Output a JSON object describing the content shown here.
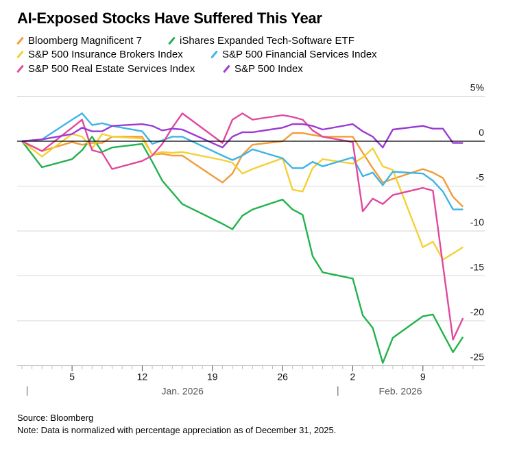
{
  "chart_data": {
    "type": "line",
    "title": "AI-Exposed Stocks Have Suffered This Year",
    "ylim": [
      -25,
      5
    ],
    "yticks": [
      5,
      0,
      -5,
      -10,
      -15,
      -20,
      -25
    ],
    "ytick_labels": [
      "5%",
      "0",
      "-5",
      "-10",
      "-15",
      "-20",
      "-25"
    ],
    "xlim": [
      "2025-12-31",
      "2026-02-13"
    ],
    "xtick_labels": [
      {
        "date": "2026-01-05",
        "label": "5"
      },
      {
        "date": "2026-01-12",
        "label": "12"
      },
      {
        "date": "2026-01-19",
        "label": "19"
      },
      {
        "date": "2026-01-26",
        "label": "26"
      },
      {
        "date": "2026-02-02",
        "label": "2"
      },
      {
        "date": "2026-02-09",
        "label": "9"
      }
    ],
    "month_labels": [
      {
        "start": "2026-01-01",
        "label": "Jan. 2026"
      },
      {
        "start": "2026-02-01",
        "label": "Feb. 2026"
      }
    ],
    "grid": true,
    "legend_placement": "top",
    "dates": [
      "2025-12-31",
      "2026-01-02",
      "2026-01-05",
      "2026-01-06",
      "2026-01-07",
      "2026-01-08",
      "2026-01-09",
      "2026-01-12",
      "2026-01-13",
      "2026-01-14",
      "2026-01-15",
      "2026-01-16",
      "2026-01-20",
      "2026-01-21",
      "2026-01-22",
      "2026-01-23",
      "2026-01-26",
      "2026-01-27",
      "2026-01-28",
      "2026-01-29",
      "2026-01-30",
      "2026-02-02",
      "2026-02-03",
      "2026-02-04",
      "2026-02-05",
      "2026-02-06",
      "2026-02-09",
      "2026-02-10",
      "2026-02-11",
      "2026-02-12",
      "2026-02-13"
    ],
    "series": [
      {
        "name": "Bloomberg Magnificent 7",
        "color": "#f29b38",
        "values": [
          0,
          -1.1,
          -0.1,
          -0.4,
          -0.2,
          -0.2,
          0.5,
          0.5,
          -1.5,
          -1.4,
          -1.6,
          -1.6,
          -4.6,
          -3.6,
          -1.5,
          -0.4,
          0,
          0.9,
          0.9,
          0.7,
          0.5,
          0.5,
          -1.3,
          -3.0,
          -4.6,
          -4.2,
          -3.1,
          -3.5,
          -4.1,
          -6.2,
          -7.3
        ]
      },
      {
        "name": "iShares Expanded Tech-Software ETF",
        "color": "#22b24c",
        "values": [
          0,
          -2.9,
          -2.0,
          -1.0,
          0.5,
          -1.2,
          -0.7,
          -0.3,
          -2.3,
          -4.4,
          -5.7,
          -7.0,
          -9.2,
          -9.8,
          -8.3,
          -7.6,
          -6.5,
          -7.6,
          -8.2,
          -12.8,
          -14.6,
          -15.3,
          -19.4,
          -20.8,
          -24.7,
          -21.9,
          -19.5,
          -19.3,
          -21.4,
          -23.5,
          -21.8
        ]
      },
      {
        "name": "S&P 500 Insurance Brokers Index",
        "color": "#f5d033",
        "values": [
          0,
          -1.7,
          0.8,
          0.5,
          -0.8,
          0.8,
          0.5,
          0.3,
          -1.5,
          -1.2,
          -1.3,
          -1.2,
          -2.1,
          -2.4,
          -3.6,
          -3.1,
          -1.9,
          -5.4,
          -5.6,
          -3.0,
          -2.0,
          -2.5,
          -1.8,
          -0.8,
          -2.8,
          -3.2,
          -11.8,
          -11.2,
          -13.2,
          -12.5,
          -11.8
        ]
      },
      {
        "name": "S&P 500 Financial Services Index",
        "color": "#3db4e6",
        "values": [
          0,
          0.2,
          2.4,
          3.1,
          1.8,
          2.0,
          1.7,
          1.1,
          -0.3,
          0.1,
          0.5,
          0.5,
          -1.6,
          -2.1,
          -1.6,
          -0.9,
          -1.9,
          -3.0,
          -3.0,
          -2.3,
          -2.8,
          -1.8,
          -3.9,
          -3.5,
          -4.9,
          -3.4,
          -3.6,
          -4.4,
          -5.6,
          -7.6,
          -7.6
        ]
      },
      {
        "name": "S&P 500 Real Estate Services Index",
        "color": "#e0489e",
        "values": [
          0,
          -1.1,
          1.5,
          2.4,
          -1.0,
          -1.3,
          -3.1,
          -2.2,
          -1.6,
          -0.3,
          1.5,
          3.1,
          -0.2,
          2.4,
          3.1,
          2.4,
          2.9,
          2.7,
          2.4,
          1.2,
          0.5,
          -0.1,
          -7.8,
          -6.4,
          -7.0,
          -6.0,
          -5.2,
          -5.5,
          -13.8,
          -22.1,
          -19.7
        ]
      },
      {
        "name": "S&P 500 Index",
        "color": "#9b3ad6",
        "values": [
          0,
          0.2,
          0.8,
          1.5,
          1.1,
          1.1,
          1.7,
          1.9,
          1.7,
          1.2,
          1.4,
          1.3,
          -0.7,
          0.5,
          1.0,
          1.0,
          1.5,
          1.9,
          1.9,
          1.7,
          1.3,
          1.9,
          1.1,
          0.5,
          -0.7,
          1.3,
          1.7,
          1.4,
          1.4,
          -0.2,
          -0.2
        ]
      }
    ]
  },
  "footer": {
    "source": "Source: Bloomberg",
    "note": "Note: Data is normalized with percentage appreciation as of December 31, 2025."
  }
}
